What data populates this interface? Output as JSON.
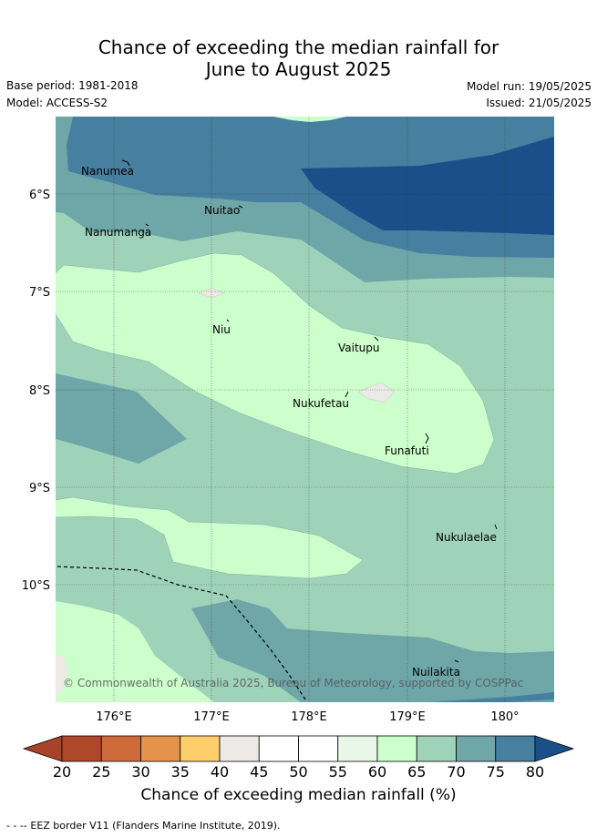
{
  "title_line1": "Chance of exceeding the median rainfall for",
  "title_line2": "June to August 2025",
  "base_period": "Base period: 1981-2018",
  "model": "Model: ACCESS-S2",
  "model_run": "Model run: 19/05/2025",
  "issued": "Issued: 21/05/2025",
  "lat_labels": [
    "6°S",
    "7°S",
    "8°S",
    "9°S",
    "10°S"
  ],
  "lon_labels": [
    "176°E",
    "177°E",
    "178°E",
    "179°E",
    "180°"
  ],
  "places": {
    "nanumea": "Nanumea",
    "nuitao": "Nuitao",
    "nanumanga": "Nanumanga",
    "niu": "Niu",
    "vaitupu": "Vaitupu",
    "nukufetau": "Nukufetau",
    "funafuti": "Funafuti",
    "nukulaelae": "Nukulaelae",
    "nuilakita": "Nuilakita"
  },
  "copyright": "© Commonwealth of Australia 2025, Bureau of Meteorology, supported by COSPPac",
  "colorbar": {
    "ticks": [
      "20",
      "25",
      "30",
      "35",
      "40",
      "45",
      "50",
      "55",
      "60",
      "65",
      "70",
      "75",
      "80"
    ],
    "colors": [
      "#b0482a",
      "#cf6b3a",
      "#e3934a",
      "#fdce6a",
      "#ece9e6",
      "#ffffff",
      "#ffffff",
      "#e9f7e9",
      "#ccffcc",
      "#9fd3b9",
      "#6fa6a8",
      "#467fa0"
    ],
    "under_color": "#a84228",
    "over_color": "#1a4f8a",
    "label": "Chance of exceeding median rainfall (%)"
  },
  "footer": "- -  -- EEZ border V11 (Flanders Marine Institute, 2019)."
}
